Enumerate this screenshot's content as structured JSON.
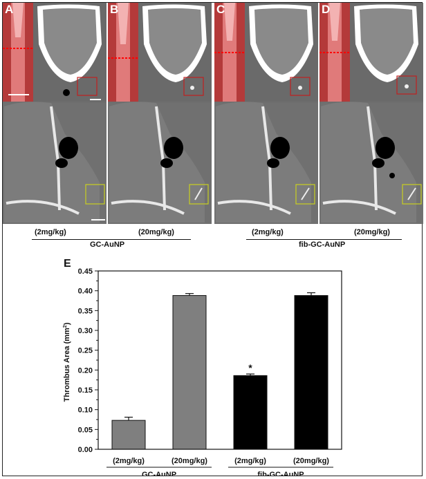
{
  "panels": [
    {
      "letter": "A"
    },
    {
      "letter": "B"
    },
    {
      "letter": "C"
    },
    {
      "letter": "D"
    }
  ],
  "top_labels": {
    "doses": [
      "(2mg/kg)",
      "(20mg/kg)",
      "(2mg/kg)",
      "(20mg/kg)"
    ],
    "groups": [
      "GC-AuNP",
      "fib-GC-AuNP"
    ]
  },
  "chart_data": {
    "type": "bar",
    "panel_letter": "E",
    "title": "",
    "ylabel": "Thrombus Area (mm²)",
    "ylabel_base": "Thrombus Area (mm",
    "ylabel_sup": "2",
    "ylabel_close": ")",
    "xlabel": "",
    "ylim": [
      0.0,
      0.45
    ],
    "yticks": [
      "0.00",
      "0.05",
      "0.10",
      "0.15",
      "0.20",
      "0.25",
      "0.30",
      "0.35",
      "0.40",
      "0.45"
    ],
    "categories": [
      "(2mg/kg)",
      "(20mg/kg)",
      "(2mg/kg)",
      "(20mg/kg)"
    ],
    "groups": [
      "GC-AuNP",
      "fib-GC-AuNP"
    ],
    "values": [
      0.073,
      0.388,
      0.186,
      0.388
    ],
    "errors": [
      0.008,
      0.005,
      0.004,
      0.007
    ],
    "colors": [
      "#7f7f7f",
      "#7f7f7f",
      "#000000",
      "#000000"
    ],
    "significance": [
      "",
      "",
      "*",
      ""
    ],
    "grid": false,
    "legend": "none"
  }
}
